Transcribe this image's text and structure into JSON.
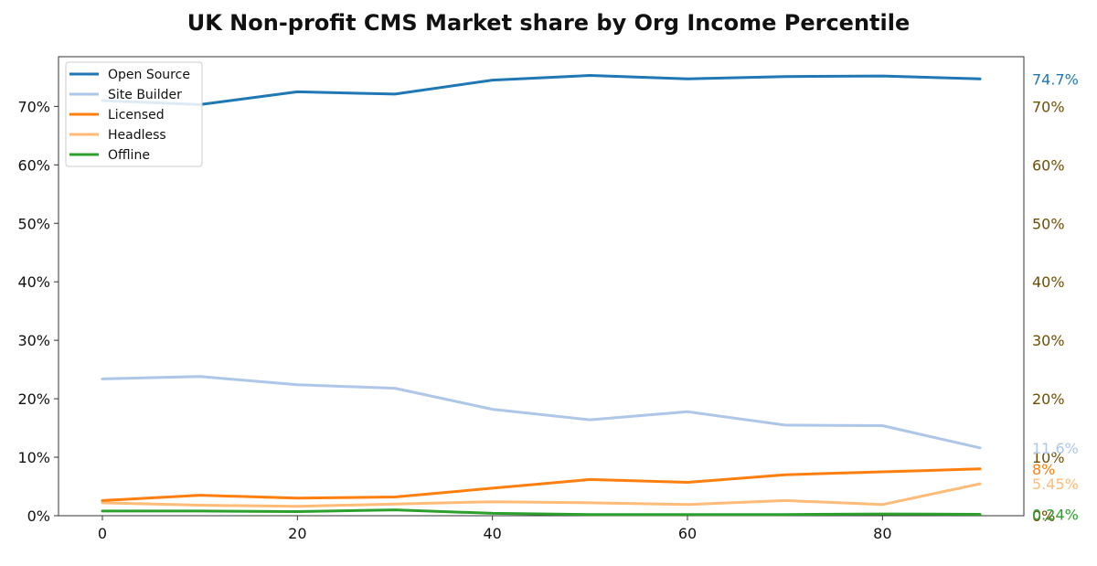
{
  "chart_data": {
    "type": "line",
    "title": "UK Non-profit CMS Market share by Org Income Percentile",
    "xlabel": "",
    "ylabel": "",
    "x": [
      0,
      10,
      20,
      30,
      40,
      50,
      60,
      70,
      80,
      90
    ],
    "xlim": [
      -4.5,
      94.5
    ],
    "ylim": [
      0,
      78.5
    ],
    "x_ticks": [
      "0",
      "20",
      "40",
      "60",
      "80"
    ],
    "y_ticks": [
      "0%",
      "10%",
      "20%",
      "30%",
      "40%",
      "50%",
      "60%",
      "70%"
    ],
    "right_ticks": [
      "0%",
      "10%",
      "20%",
      "30%",
      "40%",
      "50%",
      "60%",
      "70%"
    ],
    "right_tick_color": "#6b4e00",
    "grid": false,
    "legend_position": "top-left",
    "series": [
      {
        "name": "Open Source",
        "color": "#1f77b4",
        "values": [
          71.0,
          70.3,
          72.5,
          72.1,
          74.5,
          75.3,
          74.7,
          75.1,
          75.2,
          74.7
        ],
        "end_label": "74.7%"
      },
      {
        "name": "Site Builder",
        "color": "#aec7e8",
        "values": [
          23.4,
          23.8,
          22.4,
          21.8,
          18.2,
          16.4,
          17.8,
          15.5,
          15.4,
          11.6
        ],
        "end_label": "11.6%"
      },
      {
        "name": "Licensed",
        "color": "#ff7f0e",
        "values": [
          2.6,
          3.5,
          3.0,
          3.2,
          4.7,
          6.2,
          5.7,
          7.0,
          7.5,
          8.0
        ],
        "end_label": "8%"
      },
      {
        "name": "Headless",
        "color": "#ffbb78",
        "values": [
          2.2,
          1.8,
          1.6,
          2.0,
          2.4,
          2.2,
          1.9,
          2.6,
          1.9,
          5.45
        ],
        "end_label": "5.45%"
      },
      {
        "name": "Offline",
        "color": "#2ca02c",
        "values": [
          0.8,
          0.8,
          0.7,
          1.0,
          0.4,
          0.2,
          0.2,
          0.2,
          0.3,
          0.24
        ],
        "end_label": "0.24%"
      }
    ]
  }
}
